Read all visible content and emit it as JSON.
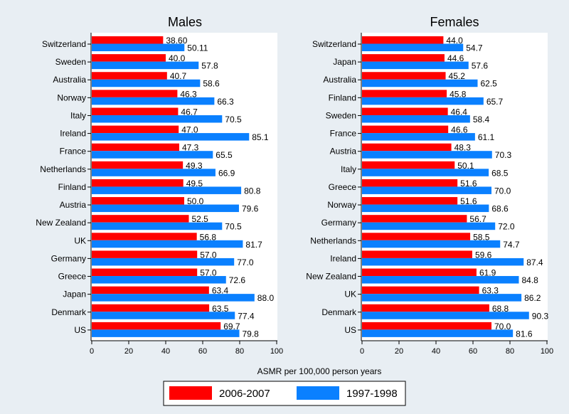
{
  "chart_data": [
    {
      "type": "bar",
      "orientation": "horizontal",
      "title": "Males",
      "categories": [
        "Switzerland",
        "Sweden",
        "Australia",
        "Norway",
        "Italy",
        "Ireland",
        "France",
        "Netherlands",
        "Finland",
        "Austria",
        "New Zealand",
        "UK",
        "Germany",
        "Greece",
        "Japan",
        "Denmark",
        "US"
      ],
      "series": [
        {
          "name": "2006-2007",
          "color": "#ff0000",
          "values": [
            38.6,
            40.0,
            40.7,
            46.3,
            46.7,
            47.0,
            47.3,
            49.3,
            49.5,
            50.0,
            52.5,
            56.8,
            57.0,
            57.0,
            63.4,
            63.5,
            69.7
          ],
          "labels": [
            "38.60",
            "40.0",
            "40.7",
            "46.3",
            "46.7",
            "47.0",
            "47.3",
            "49.3",
            "49.5",
            "50.0",
            "52.5",
            "56.8",
            "57.0",
            "57.0",
            "63.4",
            "63.5",
            "69.7"
          ]
        },
        {
          "name": "1997-1998",
          "color": "#0a80ff",
          "values": [
            50.11,
            57.8,
            58.6,
            66.3,
            70.5,
            85.1,
            65.5,
            66.9,
            80.8,
            79.6,
            70.5,
            81.7,
            77.0,
            72.6,
            88.0,
            77.4,
            79.8
          ],
          "labels": [
            "50.11",
            "57.8",
            "58.6",
            "66.3",
            "70.5",
            "85.1",
            "65.5",
            "66.9",
            "80.8",
            "79.6",
            "70.5",
            "81.7",
            "77.0",
            "72.6",
            "88.0",
            "77.4",
            "79.8"
          ]
        }
      ],
      "xlim": [
        0,
        100
      ],
      "xticks": [
        "0",
        "20",
        "40",
        "60",
        "80",
        "100"
      ]
    },
    {
      "type": "bar",
      "orientation": "horizontal",
      "title": "Females",
      "categories": [
        "Switzerland",
        "Japan",
        "Australia",
        "Finland",
        "Sweden",
        "France",
        "Austria",
        "Italy",
        "Greece",
        "Norway",
        "Germany",
        "Netherlands",
        "Ireland",
        "New Zealand",
        "UK",
        "Denmark",
        "US"
      ],
      "series": [
        {
          "name": "2006-2007",
          "color": "#ff0000",
          "values": [
            44.0,
            44.6,
            45.2,
            45.8,
            46.4,
            46.6,
            48.3,
            50.1,
            51.6,
            51.6,
            56.7,
            58.5,
            59.6,
            61.9,
            63.3,
            68.8,
            70.0
          ],
          "labels": [
            "44.0",
            "44.6",
            "45.2",
            "45.8",
            "46.4",
            "46.6",
            "48.3",
            "50.1",
            "51.6",
            "51.6",
            "56.7",
            "58.5",
            "59.6",
            "61.9",
            "63.3",
            "68.8",
            "70.0"
          ]
        },
        {
          "name": "1997-1998",
          "color": "#0a80ff",
          "values": [
            54.7,
            57.6,
            62.5,
            65.7,
            58.4,
            61.1,
            70.3,
            68.5,
            70.0,
            68.6,
            72.0,
            74.7,
            87.4,
            84.8,
            86.2,
            90.3,
            81.6
          ],
          "labels": [
            "54.7",
            "57.6",
            "62.5",
            "65.7",
            "58.4",
            "61.1",
            "70.3",
            "68.5",
            "70.0",
            "68.6",
            "72.0",
            "74.7",
            "87.4",
            "84.8",
            "86.2",
            "90.3",
            "81.6"
          ]
        }
      ],
      "xlim": [
        0,
        100
      ],
      "xticks": [
        "0",
        "20",
        "40",
        "60",
        "80",
        "100"
      ]
    }
  ],
  "xlabel": "ASMR per 100,000 person years",
  "legend": {
    "placement": "bottom",
    "items": [
      {
        "label": "2006-2007",
        "color": "#ff0000"
      },
      {
        "label": "1997-1998",
        "color": "#0a80ff"
      }
    ]
  }
}
